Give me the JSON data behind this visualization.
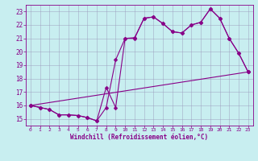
{
  "xlabel": "Windchill (Refroidissement éolien,°C)",
  "bg_color": "#c8eef0",
  "line_color": "#880088",
  "grid_color": "#9999bb",
  "xlim": [
    -0.5,
    23.5
  ],
  "ylim": [
    14.5,
    23.5
  ],
  "xticks": [
    0,
    1,
    2,
    3,
    4,
    5,
    6,
    7,
    8,
    9,
    10,
    11,
    12,
    13,
    14,
    15,
    16,
    17,
    18,
    19,
    20,
    21,
    22,
    23
  ],
  "yticks": [
    15,
    16,
    17,
    18,
    19,
    20,
    21,
    22,
    23
  ],
  "line1_x": [
    0,
    1,
    2,
    3,
    4,
    5,
    6,
    7,
    8,
    9,
    10,
    11,
    12,
    13,
    14,
    15,
    16,
    17,
    18,
    19,
    20,
    21,
    22,
    23
  ],
  "line1_y": [
    16.0,
    15.85,
    15.7,
    15.3,
    15.3,
    15.25,
    15.1,
    14.85,
    17.35,
    15.85,
    21.0,
    21.0,
    22.5,
    22.6,
    22.1,
    21.5,
    21.4,
    22.0,
    22.2,
    23.2,
    22.5,
    21.0,
    19.9,
    18.5
  ],
  "line2_x": [
    0,
    1,
    2,
    3,
    4,
    5,
    6,
    7,
    8,
    9,
    10,
    11,
    12,
    13,
    14,
    15,
    16,
    17,
    18,
    19,
    20,
    21,
    22,
    23
  ],
  "line2_y": [
    16.0,
    15.85,
    15.7,
    15.3,
    15.3,
    15.25,
    15.1,
    14.85,
    15.85,
    19.4,
    21.0,
    21.05,
    22.5,
    22.6,
    22.1,
    21.5,
    21.4,
    22.0,
    22.2,
    23.2,
    22.5,
    21.0,
    19.9,
    18.5
  ],
  "line3_x": [
    0,
    23
  ],
  "line3_y": [
    16.0,
    18.5
  ],
  "markersize": 2.5
}
